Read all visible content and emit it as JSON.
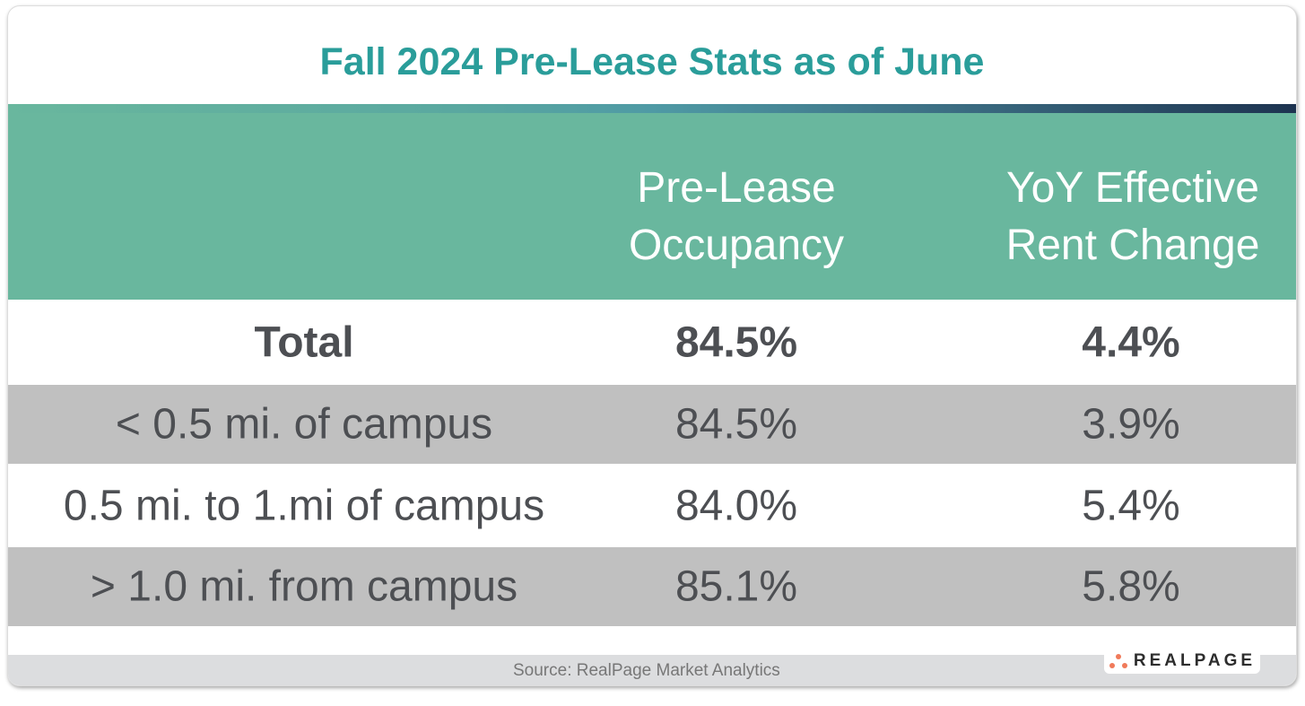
{
  "title": "Fall 2024 Pre-Lease Stats as of June",
  "headers": {
    "col2": [
      "Pre-Lease",
      "Occupancy"
    ],
    "col3": [
      "YoY Effective",
      "Rent Change"
    ]
  },
  "rows": [
    {
      "label": "Total",
      "occupancy": "84.5%",
      "rent_change": "4.4%"
    },
    {
      "label": "< 0.5 mi. of campus",
      "occupancy": "84.5%",
      "rent_change": "3.9%"
    },
    {
      "label": "0.5 mi. to 1.mi of campus",
      "occupancy": "84.0%",
      "rent_change": "5.4%"
    },
    {
      "label": "> 1.0 mi. from campus",
      "occupancy": "85.1%",
      "rent_change": "5.8%"
    }
  ],
  "source": "Source: RealPage Market Analytics",
  "logo": "REALPAGE",
  "colors": {
    "title": "#2a9d9a",
    "header": "#69b79e",
    "stripe": "#c0c0c0",
    "logo_dots": "#f07a5a"
  }
}
